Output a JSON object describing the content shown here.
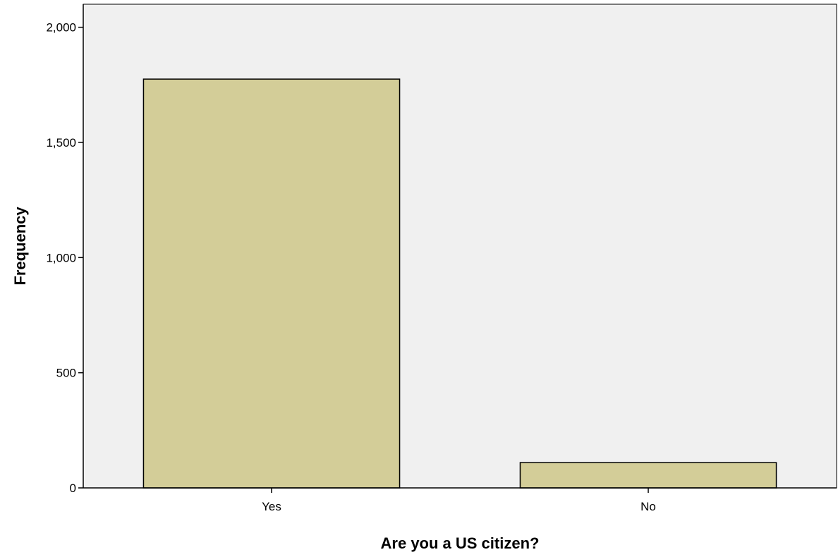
{
  "chart_data": {
    "type": "bar",
    "categories": [
      "Yes",
      "No"
    ],
    "values": [
      1775,
      110
    ],
    "title": "",
    "xlabel": "Are you a US citizen?",
    "ylabel": "Frequency",
    "ylim": [
      0,
      2100
    ],
    "yticks": [
      0,
      500,
      1000,
      1500,
      2000
    ],
    "ytick_labels": [
      "0",
      "500",
      "1,000",
      "1,500",
      "2,000"
    ],
    "grid": false,
    "legend": "none",
    "colors": {
      "bar_fill": "#d3cd98",
      "plot_background": "#f0f0f0",
      "page_background": "#ffffff"
    }
  }
}
